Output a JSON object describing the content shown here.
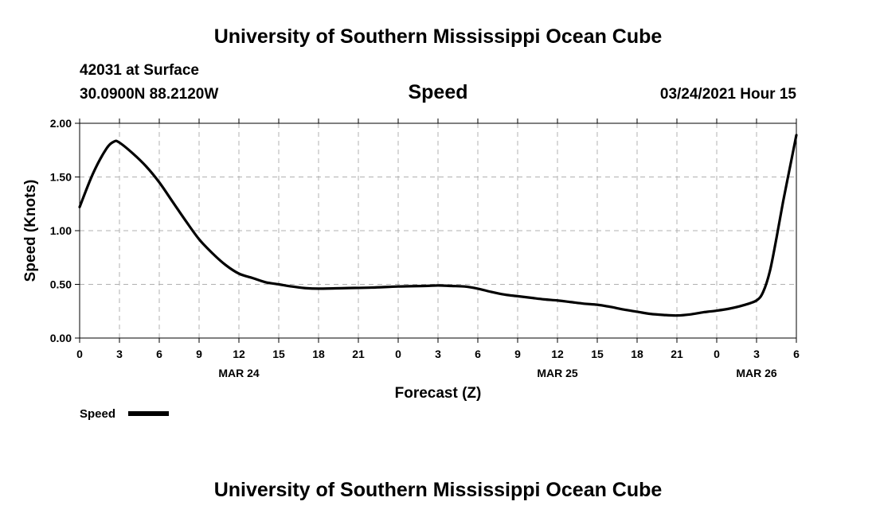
{
  "header": {
    "title": "University of Southern Mississippi Ocean Cube",
    "station": "42031 at Surface",
    "coords": "30.0900N 88.2120W",
    "variable": "Speed",
    "datetime": "03/24/2021 Hour 15"
  },
  "footer": {
    "title": "University of Southern Mississippi Ocean Cube"
  },
  "chart_data": {
    "type": "line",
    "xlabel": "Forecast (Z)",
    "ylabel": "Speed (Knots)",
    "ylim": [
      0,
      2
    ],
    "xlim": [
      0,
      54
    ],
    "yticks": [
      "0.00",
      "0.50",
      "1.00",
      "1.50",
      "2.00"
    ],
    "xticks": [
      "0",
      "3",
      "6",
      "9",
      "12",
      "15",
      "18",
      "21",
      "0",
      "3",
      "6",
      "9",
      "12",
      "15",
      "18",
      "21",
      "0",
      "3",
      "6"
    ],
    "date_labels": [
      {
        "text": "MAR 24",
        "at_hour": 12
      },
      {
        "text": "MAR 25",
        "at_hour": 36
      },
      {
        "text": "MAR 26",
        "at_hour": 51
      }
    ],
    "grid": true,
    "legend": {
      "label": "Speed",
      "position": "bottom-left"
    },
    "series": [
      {
        "name": "Speed",
        "color": "#000000",
        "points": [
          [
            0,
            1.22
          ],
          [
            1,
            1.53
          ],
          [
            2,
            1.76
          ],
          [
            2.6,
            1.83
          ],
          [
            3,
            1.82
          ],
          [
            4,
            1.72
          ],
          [
            5,
            1.6
          ],
          [
            6,
            1.45
          ],
          [
            7,
            1.27
          ],
          [
            8,
            1.09
          ],
          [
            9,
            0.92
          ],
          [
            10,
            0.79
          ],
          [
            11,
            0.68
          ],
          [
            12,
            0.6
          ],
          [
            13,
            0.56
          ],
          [
            14,
            0.52
          ],
          [
            15,
            0.5
          ],
          [
            16,
            0.48
          ],
          [
            17,
            0.465
          ],
          [
            18,
            0.46
          ],
          [
            20,
            0.465
          ],
          [
            22,
            0.47
          ],
          [
            24,
            0.48
          ],
          [
            26,
            0.485
          ],
          [
            27,
            0.49
          ],
          [
            28,
            0.485
          ],
          [
            29,
            0.48
          ],
          [
            30,
            0.46
          ],
          [
            31,
            0.43
          ],
          [
            32,
            0.405
          ],
          [
            33,
            0.39
          ],
          [
            34,
            0.375
          ],
          [
            35,
            0.36
          ],
          [
            36,
            0.35
          ],
          [
            37,
            0.335
          ],
          [
            38,
            0.32
          ],
          [
            39,
            0.31
          ],
          [
            40,
            0.29
          ],
          [
            41,
            0.265
          ],
          [
            42,
            0.245
          ],
          [
            43,
            0.225
          ],
          [
            44,
            0.215
          ],
          [
            45,
            0.21
          ],
          [
            46,
            0.22
          ],
          [
            47,
            0.24
          ],
          [
            48,
            0.255
          ],
          [
            49,
            0.275
          ],
          [
            50,
            0.305
          ],
          [
            51,
            0.35
          ],
          [
            51.5,
            0.43
          ],
          [
            52,
            0.62
          ],
          [
            52.5,
            0.93
          ],
          [
            53,
            1.27
          ],
          [
            53.5,
            1.58
          ],
          [
            54,
            1.89
          ]
        ]
      }
    ]
  }
}
